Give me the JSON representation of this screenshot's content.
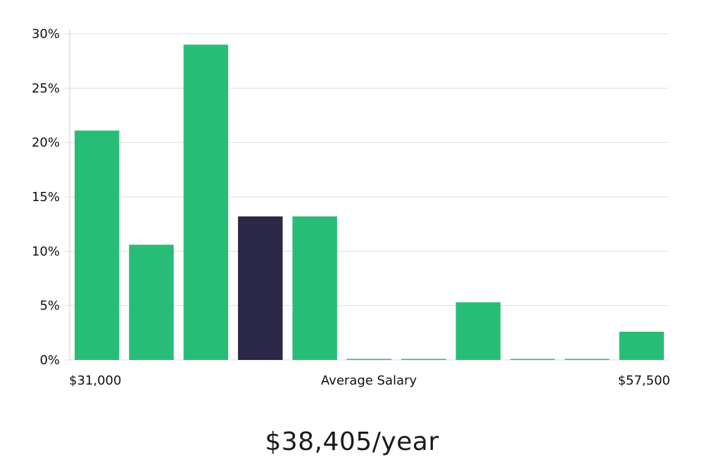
{
  "chart_data": {
    "type": "bar",
    "title": "",
    "xlabel": "Average Salary",
    "ylabel": "",
    "x_min_label": "$31,000",
    "x_max_label": "$57,500",
    "ylim": [
      0,
      30
    ],
    "yticks": [
      0,
      5,
      10,
      15,
      20,
      25,
      30
    ],
    "ytick_suffix": "%",
    "grid": true,
    "values": [
      21.1,
      10.6,
      29.0,
      13.2,
      13.2,
      0,
      0,
      5.3,
      0,
      0,
      2.6
    ],
    "highlight_index": 3,
    "colors": {
      "bar": "#28bd77",
      "highlight": "#2a2747",
      "grid": "#dddddd",
      "axis": "#cccccc"
    }
  },
  "salary": {
    "headline": "$38,405/year"
  }
}
